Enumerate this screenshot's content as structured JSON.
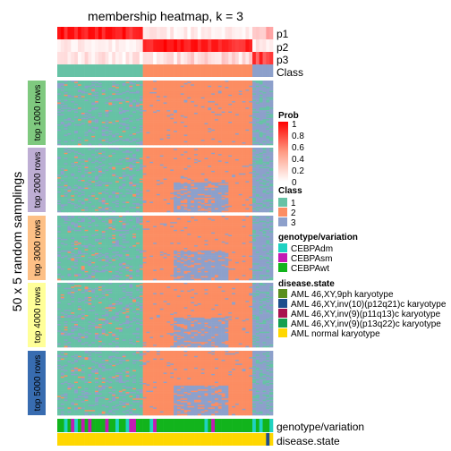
{
  "title": "membership heatmap, k = 3",
  "y_axis_title": "50 x 5 random samplings",
  "top_rows": [
    "p1",
    "p2",
    "p3",
    "Class"
  ],
  "bottom_rows": [
    "genotype/variation",
    "disease.state"
  ],
  "chart_data": {
    "type": "heatmap",
    "title": "membership heatmap, k = 3",
    "ylabel": "50 x 5 random samplings",
    "n_samples": 63,
    "class_column_spans": [
      {
        "class": "1",
        "count": 25
      },
      {
        "class": "2",
        "count": 32
      },
      {
        "class": "3",
        "count": 6
      }
    ],
    "row_groups": [
      {
        "label": "top 1000 rows",
        "color": "#7fc97f"
      },
      {
        "label": "top 2000 rows",
        "color": "#beaed4"
      },
      {
        "label": "top 3000 rows",
        "color": "#fdc086"
      },
      {
        "label": "top 4000 rows",
        "color": "#ffff99"
      },
      {
        "label": "top 5000 rows",
        "color": "#386cb0"
      }
    ]
  },
  "legends": {
    "prob": {
      "title": "Prob",
      "ticks": [
        "1",
        "0.8",
        "0.6",
        "0.4",
        "0.2",
        "0"
      ],
      "color_high": "#ff0000",
      "color_low": "#ffffff"
    },
    "class": {
      "title": "Class",
      "items": [
        {
          "label": "1",
          "color": "#66c2a5"
        },
        {
          "label": "2",
          "color": "#fc8d62"
        },
        {
          "label": "3",
          "color": "#8da0cb"
        }
      ]
    },
    "genotype": {
      "title": "genotype/variation",
      "items": [
        {
          "label": "CEBPAdm",
          "color": "#1fd2c2"
        },
        {
          "label": "CEBPAsm",
          "color": "#c41ab4"
        },
        {
          "label": "CEBPAwt",
          "color": "#12b41c"
        }
      ]
    },
    "disease": {
      "title": "disease.state",
      "items": [
        {
          "label": "AML 46,XY,9ph karyotype",
          "color": "#5a8e1e"
        },
        {
          "label": "AML 46,XY,inv(10)(p12q21)c karyotype",
          "color": "#1e4e8c"
        },
        {
          "label": "AML 46,XY,inv(9)(p11q13)c karyotype",
          "color": "#a8124e"
        },
        {
          "label": "AML 46,XY,inv(9)(p13q22)c karyotype",
          "color": "#14a050"
        },
        {
          "label": "AML normal karyotype",
          "color": "#ffd700"
        }
      ]
    }
  }
}
